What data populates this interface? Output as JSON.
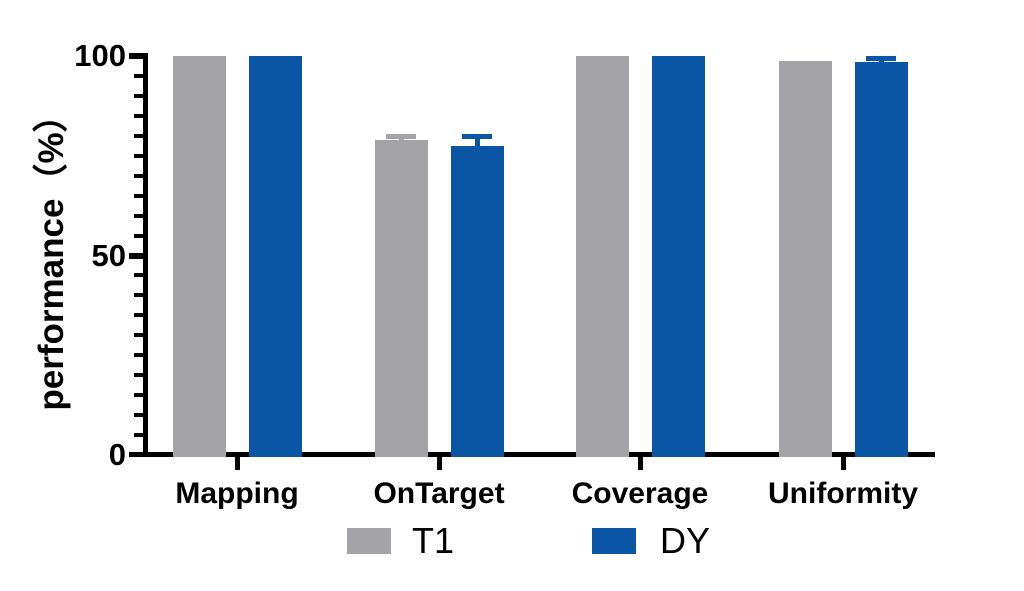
{
  "figure": {
    "background": "#ffffff",
    "axis_color": "#000000",
    "text_color": "#000000"
  },
  "chart_data": {
    "type": "bar",
    "title": "",
    "xlabel": "",
    "ylabel": "performance（%）",
    "ylim": [
      0,
      100
    ],
    "yticks": [
      0,
      50,
      100
    ],
    "minor_tick_step": 5,
    "grid": false,
    "legend_position": "bottom-center",
    "error_bars": "sd, caps, series-colored, upper side visible",
    "categories": [
      "Mapping",
      "OnTarget",
      "Coverage",
      "Uniformity"
    ],
    "series": [
      {
        "name": "T1",
        "color": "#A4A4A8",
        "values": [
          100,
          79,
          100,
          98.7
        ],
        "errors": [
          0,
          0.8,
          0,
          0
        ]
      },
      {
        "name": "DY",
        "color": "#0A55A4",
        "values": [
          100,
          77.5,
          100,
          98.5
        ],
        "errors": [
          0,
          2.2,
          0,
          0.8
        ]
      }
    ]
  }
}
